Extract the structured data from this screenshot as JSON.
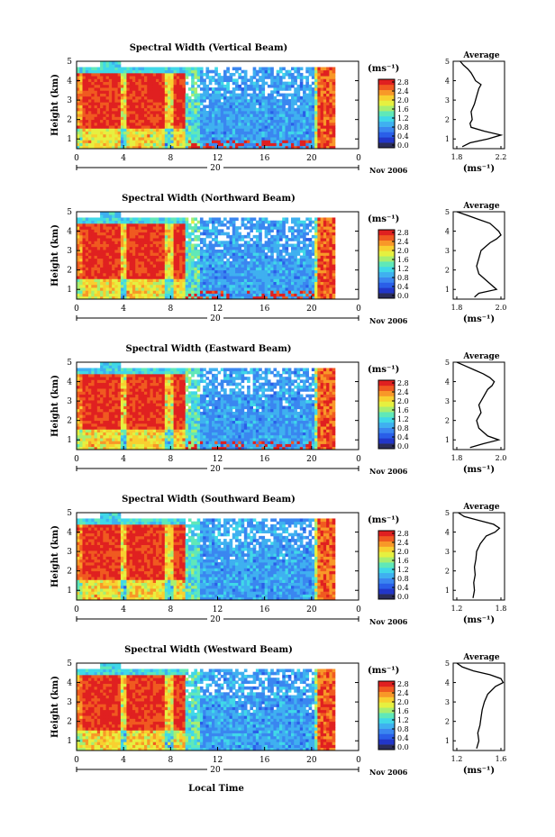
{
  "figure": {
    "xlabel": "Local Time",
    "date_label": "Nov 2006",
    "day_label": "20",
    "unit_label": "(ms⁻¹)",
    "avg_title": "Average"
  },
  "colors": {
    "colorbar": [
      "#2b2d5a",
      "#2236c8",
      "#2a5ee8",
      "#3a86f0",
      "#3fb0f0",
      "#40d8e8",
      "#60e8b8",
      "#a8ee70",
      "#e6f040",
      "#f8d030",
      "#f89828",
      "#f05a20",
      "#e02020"
    ],
    "nodata": "#ffffff"
  },
  "chart_data": [
    {
      "type": "heatmap",
      "title": "Spectral Width (Vertical Beam)",
      "ylabel": "Height (km)",
      "xlim": [
        0,
        24
      ],
      "ylim": [
        0.5,
        5
      ],
      "xticks": [
        "0",
        "4",
        "8",
        "12",
        "16",
        "20",
        "0"
      ],
      "yticks": [
        "1",
        "2",
        "3",
        "4",
        "5"
      ],
      "colorbar_ticks": [
        "0.0",
        "0.4",
        "0.8",
        "1.2",
        "1.6",
        "2.0",
        "2.4",
        "2.8"
      ],
      "avg_profile": {
        "xlim": [
          1.8,
          2.2
        ],
        "xticks": [
          "1.8",
          "2.2"
        ],
        "height": [
          0.6,
          0.8,
          1.0,
          1.2,
          1.4,
          1.6,
          1.8,
          2.0,
          2.4,
          2.8,
          3.2,
          3.6,
          3.8,
          4.0,
          4.2,
          4.4,
          4.6,
          4.8,
          5.0
        ],
        "width": [
          1.85,
          1.92,
          2.08,
          2.2,
          2.05,
          1.93,
          1.92,
          1.94,
          1.93,
          1.96,
          1.98,
          2.0,
          2.02,
          1.97,
          1.95,
          1.93,
          1.9,
          1.86,
          1.83
        ]
      }
    },
    {
      "type": "heatmap",
      "title": "Spectral Width (Northward Beam)",
      "ylabel": "Height (km)",
      "xlim": [
        0,
        24
      ],
      "ylim": [
        0.5,
        5
      ],
      "xticks": [
        "0",
        "4",
        "8",
        "12",
        "16",
        "20",
        "0"
      ],
      "yticks": [
        "1",
        "2",
        "3",
        "4",
        "5"
      ],
      "colorbar_ticks": [
        "0.0",
        "0.4",
        "0.8",
        "1.2",
        "1.6",
        "2.0",
        "2.4",
        "2.8"
      ],
      "avg_profile": {
        "xlim": [
          1.8,
          2.0
        ],
        "xticks": [
          "1.8",
          "2.0"
        ],
        "height": [
          0.6,
          0.8,
          1.0,
          1.4,
          1.8,
          2.2,
          2.6,
          3.0,
          3.4,
          3.6,
          3.8,
          4.0,
          4.2,
          4.4,
          4.6,
          4.8,
          5.0
        ],
        "width": [
          1.88,
          1.9,
          1.98,
          1.94,
          1.9,
          1.89,
          1.9,
          1.91,
          1.95,
          1.98,
          2.0,
          1.99,
          1.97,
          1.95,
          1.9,
          1.85,
          1.8
        ]
      }
    },
    {
      "type": "heatmap",
      "title": "Spectral Width (Eastward Beam)",
      "ylabel": "Height (km)",
      "xlim": [
        0,
        24
      ],
      "ylim": [
        0.5,
        5
      ],
      "xticks": [
        "0",
        "4",
        "8",
        "12",
        "16",
        "20",
        "0"
      ],
      "yticks": [
        "1",
        "2",
        "3",
        "4",
        "5"
      ],
      "colorbar_ticks": [
        "0.0",
        "0.4",
        "0.8",
        "1.2",
        "1.6",
        "2.0",
        "2.4",
        "2.8"
      ],
      "avg_profile": {
        "xlim": [
          1.8,
          2.0
        ],
        "xticks": [
          "1.8",
          "2.0"
        ],
        "height": [
          0.6,
          0.8,
          1.0,
          1.2,
          1.6,
          2.0,
          2.4,
          2.8,
          3.2,
          3.6,
          3.8,
          4.0,
          4.2,
          4.4,
          4.6,
          4.8,
          5.0
        ],
        "width": [
          1.86,
          1.92,
          1.99,
          1.94,
          1.9,
          1.89,
          1.91,
          1.9,
          1.92,
          1.94,
          1.96,
          1.97,
          1.95,
          1.92,
          1.88,
          1.84,
          1.8
        ]
      }
    },
    {
      "type": "heatmap",
      "title": "Spectral Width (Southward Beam)",
      "ylabel": "Height (km)",
      "xlim": [
        0,
        24
      ],
      "ylim": [
        0.5,
        5
      ],
      "xticks": [
        "0",
        "4",
        "8",
        "12",
        "16",
        "20",
        "0"
      ],
      "yticks": [
        "1",
        "2",
        "3",
        "4",
        "5"
      ],
      "colorbar_ticks": [
        "0.0",
        "0.4",
        "0.8",
        "1.2",
        "1.6",
        "2.0",
        "2.4",
        "2.8"
      ],
      "avg_profile": {
        "xlim": [
          1.2,
          1.8
        ],
        "xticks": [
          "1.2",
          "1.8"
        ],
        "height": [
          0.6,
          1.0,
          1.4,
          1.8,
          2.2,
          2.6,
          3.0,
          3.4,
          3.8,
          4.0,
          4.2,
          4.4,
          4.6,
          4.8,
          5.0
        ],
        "width": [
          1.42,
          1.44,
          1.43,
          1.45,
          1.44,
          1.46,
          1.47,
          1.52,
          1.6,
          1.72,
          1.78,
          1.7,
          1.5,
          1.3,
          1.22
        ]
      }
    },
    {
      "type": "heatmap",
      "title": "Spectral Width (Westward Beam)",
      "ylabel": "Height (km)",
      "xlim": [
        0,
        24
      ],
      "ylim": [
        0.5,
        5
      ],
      "xticks": [
        "0",
        "4",
        "8",
        "12",
        "16",
        "20",
        "0"
      ],
      "yticks": [
        "1",
        "2",
        "3",
        "4",
        "5"
      ],
      "colorbar_ticks": [
        "0.0",
        "0.4",
        "0.8",
        "1.2",
        "1.6",
        "2.0",
        "2.4",
        "2.8"
      ],
      "avg_profile": {
        "xlim": [
          1.2,
          1.6
        ],
        "xticks": [
          "1.2",
          "1.6"
        ],
        "height": [
          0.6,
          1.0,
          1.4,
          1.8,
          2.2,
          2.6,
          3.0,
          3.4,
          3.8,
          4.0,
          4.2,
          4.4,
          4.6,
          4.8,
          5.0
        ],
        "width": [
          1.38,
          1.4,
          1.39,
          1.41,
          1.42,
          1.43,
          1.45,
          1.48,
          1.55,
          1.62,
          1.6,
          1.5,
          1.35,
          1.25,
          1.2
        ]
      }
    }
  ]
}
